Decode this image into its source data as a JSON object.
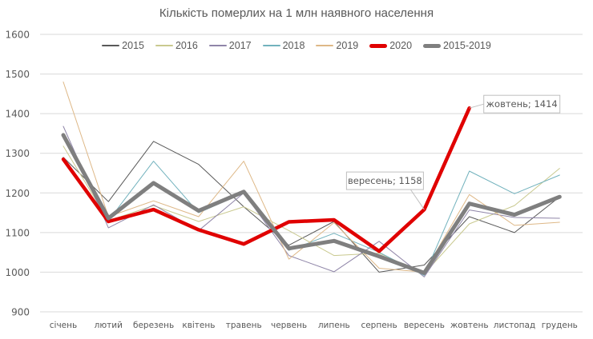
{
  "chart_data": {
    "type": "line",
    "title": "Кількість померлих на 1 млн наявного населення",
    "xlabel": "",
    "ylabel": "",
    "ylim": [
      900,
      1600
    ],
    "yticks": [
      900,
      1000,
      1100,
      1200,
      1300,
      1400,
      1500,
      1600
    ],
    "grid": true,
    "legend_position": "top",
    "categories": [
      "січень",
      "лютий",
      "березень",
      "квітень",
      "травень",
      "червень",
      "липень",
      "серпень",
      "вересень",
      "жовтень",
      "листопад",
      "грудень"
    ],
    "series": [
      {
        "name": "2015",
        "color": "#595959",
        "width": 1,
        "values": [
          1290,
          1178,
          1330,
          1272,
          1165,
          1068,
          1128,
          1000,
          1018,
          1140,
          1100,
          1190
        ]
      },
      {
        "name": "2016",
        "color": "#c9c98f",
        "width": 1,
        "values": [
          1318,
          1130,
          1168,
          1128,
          1165,
          1105,
          1042,
          1048,
          996,
          1122,
          1168,
          1262
        ]
      },
      {
        "name": "2017",
        "color": "#8f85a8",
        "width": 1,
        "values": [
          1368,
          1112,
          1170,
          1105,
          1200,
          1042,
          1001,
          1078,
          988,
          1157,
          1138,
          1136
        ]
      },
      {
        "name": "2018",
        "color": "#72b2bd",
        "width": 1,
        "values": [
          1340,
          1130,
          1280,
          1150,
          1200,
          1055,
          1098,
          1050,
          992,
          1255,
          1198,
          1245
        ]
      },
      {
        "name": "2019",
        "color": "#deb887",
        "width": 1,
        "values": [
          1480,
          1140,
          1180,
          1140,
          1280,
          1033,
          1125,
          1010,
          1000,
          1196,
          1118,
          1126
        ]
      },
      {
        "name": "2020",
        "color": "#e00000",
        "width": 4.5,
        "values": [
          1285,
          1128,
          1158,
          1107,
          1071,
          1127,
          1132,
          1053,
          1158,
          1414,
          null,
          null
        ]
      },
      {
        "name": "2015-2019",
        "color": "#7f7f7f",
        "width": 5,
        "values": [
          1346,
          1136,
          1225,
          1155,
          1203,
          1060,
          1079,
          1040,
          998,
          1173,
          1145,
          1190
        ]
      }
    ],
    "annotations": [
      {
        "series": "2020",
        "category": "вересень",
        "value": 1158,
        "text": "вересень; 1158"
      },
      {
        "series": "2020",
        "category": "жовтень",
        "value": 1414,
        "text": "жовтень; 1414"
      }
    ]
  }
}
